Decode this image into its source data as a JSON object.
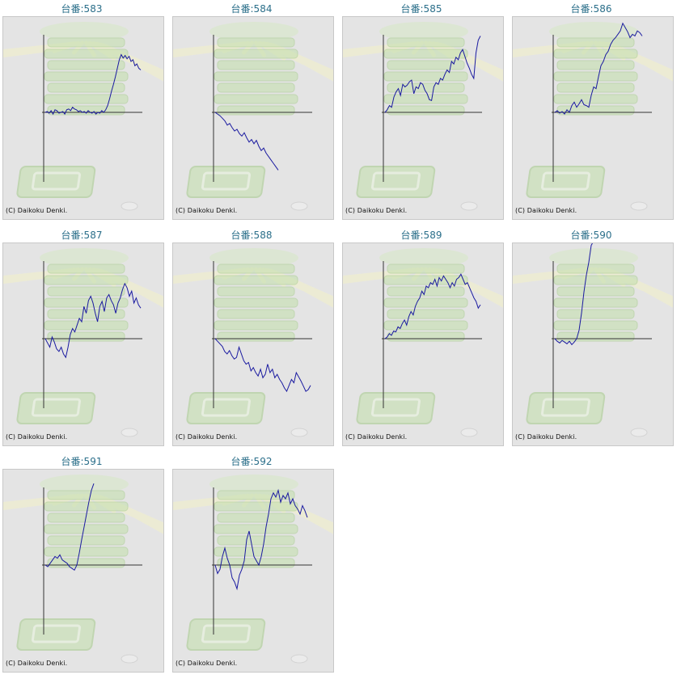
{
  "copyright": "(C) Daikoku Denki.",
  "colors": {
    "line": "#1a1aa0",
    "axis": "#333333",
    "title": "#2b6f8a",
    "background": "#e4e4e4"
  },
  "chart_data": [
    {
      "type": "line",
      "title": "台番:583",
      "values": [
        0,
        1,
        -1,
        2,
        -2,
        3,
        2,
        -1,
        0,
        1,
        -2,
        3,
        4,
        2,
        6,
        4,
        3,
        1,
        2,
        0,
        1,
        -1,
        2,
        0,
        -1,
        1,
        -2,
        0,
        -1,
        2,
        0,
        3,
        8,
        16,
        25,
        33,
        42,
        52,
        62,
        68,
        64,
        67,
        63,
        66,
        60,
        62,
        55,
        57,
        52,
        50
      ]
    },
    {
      "type": "line",
      "title": "台番:584",
      "values": [
        0,
        -2,
        -4,
        -7,
        -10,
        -15,
        -13,
        -18,
        -22,
        -20,
        -25,
        -28,
        -24,
        -30,
        -35,
        -32,
        -37,
        -33,
        -40,
        -45,
        -42,
        -48,
        -52,
        -56,
        -60,
        -64,
        -68
      ]
    },
    {
      "type": "line",
      "title": "台番:585",
      "values": [
        0,
        3,
        8,
        6,
        18,
        24,
        28,
        20,
        33,
        30,
        32,
        36,
        38,
        22,
        30,
        28,
        35,
        33,
        26,
        22,
        15,
        14,
        30,
        35,
        33,
        40,
        38,
        45,
        50,
        47,
        60,
        57,
        65,
        62,
        70,
        74,
        66,
        58,
        52,
        45,
        40,
        70,
        85,
        90
      ]
    },
    {
      "type": "line",
      "title": "台番:586",
      "values": [
        0,
        2,
        -1,
        1,
        -2,
        3,
        0,
        8,
        12,
        6,
        10,
        15,
        9,
        8,
        6,
        20,
        30,
        28,
        42,
        55,
        60,
        68,
        72,
        80,
        85,
        88,
        92,
        96,
        105,
        100,
        95,
        88,
        92,
        90,
        96,
        94,
        90
      ]
    },
    {
      "type": "line",
      "title": "台番:587",
      "values": [
        0,
        -5,
        -10,
        2,
        -4,
        -12,
        -15,
        -10,
        -18,
        -22,
        -10,
        5,
        12,
        8,
        16,
        24,
        20,
        38,
        30,
        45,
        50,
        42,
        30,
        20,
        38,
        44,
        32,
        48,
        52,
        45,
        40,
        30,
        42,
        48,
        58,
        65,
        60,
        50,
        56,
        42,
        48,
        40,
        36
      ]
    },
    {
      "type": "line",
      "title": "台番:588",
      "values": [
        0,
        -3,
        -6,
        -9,
        -15,
        -18,
        -14,
        -20,
        -24,
        -22,
        -10,
        -18,
        -26,
        -30,
        -28,
        -38,
        -34,
        -40,
        -44,
        -36,
        -46,
        -42,
        -30,
        -40,
        -36,
        -46,
        -42,
        -48,
        -52,
        -58,
        -62,
        -55,
        -48,
        -52,
        -40,
        -45,
        -50,
        -56,
        -62,
        -60,
        -55
      ]
    },
    {
      "type": "line",
      "title": "台番:589",
      "values": [
        0,
        2,
        6,
        4,
        9,
        8,
        14,
        12,
        18,
        22,
        16,
        26,
        32,
        28,
        38,
        44,
        48,
        56,
        52,
        62,
        60,
        66,
        64,
        70,
        62,
        72,
        68,
        74,
        70,
        66,
        60,
        66,
        62,
        70,
        72,
        76,
        70,
        64,
        66,
        60,
        54,
        48,
        44,
        36,
        40
      ]
    },
    {
      "type": "line",
      "title": "台番:590",
      "values": [
        0,
        -3,
        -5,
        -2,
        -4,
        -6,
        -3,
        -7,
        -4,
        0,
        10,
        30,
        55,
        75,
        90,
        110,
        115,
        118
      ]
    },
    {
      "type": "line",
      "title": "台番:591",
      "values": [
        0,
        -2,
        2,
        6,
        10,
        8,
        12,
        6,
        4,
        2,
        -2,
        -4,
        -6,
        0,
        14,
        30,
        45,
        60,
        75,
        88,
        96
      ]
    },
    {
      "type": "line",
      "title": "台番:592",
      "values": [
        0,
        -10,
        -5,
        10,
        20,
        8,
        0,
        -15,
        -20,
        -28,
        -12,
        -5,
        5,
        30,
        40,
        25,
        10,
        5,
        0,
        10,
        25,
        45,
        60,
        78,
        85,
        80,
        88,
        74,
        82,
        78,
        85,
        72,
        78,
        70,
        66,
        60,
        70,
        64,
        56
      ]
    }
  ]
}
